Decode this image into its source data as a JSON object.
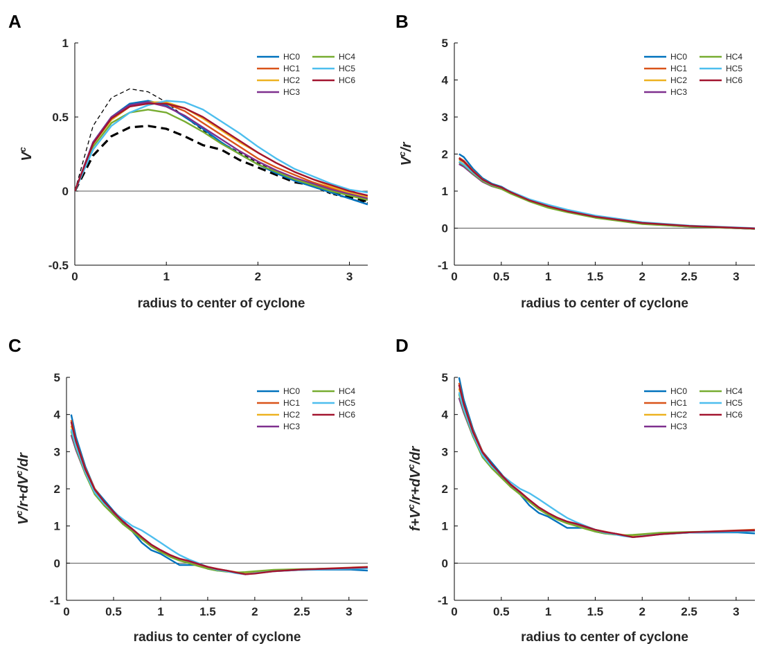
{
  "figure_title": "",
  "series_colors": {
    "HC0": "#0072BD",
    "HC1": "#D95319",
    "HC2": "#EDB120",
    "HC3": "#7E2F8E",
    "HC4": "#77AC30",
    "HC5": "#4DBEEE",
    "HC6": "#A2142F"
  },
  "chart_data": [
    {
      "panel": "A",
      "type": "line",
      "title": "",
      "xlabel": "radius to center of cyclone",
      "ylabel": "V^c",
      "ylabel_parts": [
        {
          "t": "V",
          "sup": false
        },
        {
          "t": "c",
          "sup": true
        }
      ],
      "xlim": [
        0,
        3.2
      ],
      "ylim": [
        -0.5,
        1
      ],
      "xticks": [
        0,
        1,
        2,
        3
      ],
      "xtick_labels": [
        "0",
        "1",
        "2",
        "3"
      ],
      "yticks": [
        -0.5,
        0,
        0.5,
        1
      ],
      "ytick_labels": [
        "-0.5",
        "0",
        "0.5",
        "1"
      ],
      "legend": [
        "HC0",
        "HC1",
        "HC2",
        "HC3",
        "HC4",
        "HC5",
        "HC6"
      ],
      "x": [
        0,
        0.2,
        0.4,
        0.6,
        0.8,
        1.0,
        1.2,
        1.4,
        1.6,
        1.8,
        2.0,
        2.2,
        2.4,
        2.6,
        2.8,
        3.0,
        3.2
      ],
      "series": [
        {
          "name": "HC0",
          "values": [
            0,
            0.33,
            0.5,
            0.59,
            0.61,
            0.58,
            0.5,
            0.42,
            0.33,
            0.25,
            0.18,
            0.12,
            0.07,
            0.03,
            -0.01,
            -0.05,
            -0.09
          ]
        },
        {
          "name": "HC1",
          "values": [
            0,
            0.32,
            0.49,
            0.58,
            0.6,
            0.59,
            0.54,
            0.46,
            0.38,
            0.3,
            0.22,
            0.16,
            0.11,
            0.06,
            0.02,
            -0.02,
            -0.05
          ]
        },
        {
          "name": "HC2",
          "values": [
            0,
            0.32,
            0.48,
            0.57,
            0.6,
            0.6,
            0.56,
            0.49,
            0.41,
            0.33,
            0.26,
            0.19,
            0.13,
            0.08,
            0.03,
            -0.01,
            -0.04
          ]
        },
        {
          "name": "HC3",
          "values": [
            0,
            0.33,
            0.5,
            0.58,
            0.6,
            0.57,
            0.51,
            0.43,
            0.35,
            0.27,
            0.2,
            0.14,
            0.09,
            0.05,
            0.01,
            -0.02,
            -0.05
          ]
        },
        {
          "name": "HC4",
          "values": [
            0,
            0.3,
            0.46,
            0.53,
            0.55,
            0.53,
            0.47,
            0.4,
            0.32,
            0.25,
            0.18,
            0.13,
            0.08,
            0.04,
            0.0,
            -0.03,
            -0.06
          ]
        },
        {
          "name": "HC5",
          "values": [
            0,
            0.28,
            0.44,
            0.53,
            0.58,
            0.61,
            0.6,
            0.55,
            0.47,
            0.39,
            0.3,
            0.22,
            0.15,
            0.1,
            0.05,
            0.01,
            -0.01
          ]
        },
        {
          "name": "HC6",
          "values": [
            0,
            0.32,
            0.49,
            0.57,
            0.59,
            0.59,
            0.56,
            0.5,
            0.42,
            0.34,
            0.26,
            0.19,
            0.13,
            0.08,
            0.04,
            0.0,
            -0.03
          ]
        }
      ],
      "dashed": [
        {
          "name": "dashed-thin",
          "values": [
            0,
            0.44,
            0.63,
            0.69,
            0.67,
            0.6,
            0.5,
            0.41,
            0.33,
            0.26,
            0.19,
            0.13,
            0.08,
            0.03,
            -0.02,
            -0.05,
            -0.08
          ]
        },
        {
          "name": "dashed-thick",
          "values": [
            0,
            0.24,
            0.37,
            0.43,
            0.44,
            0.42,
            0.37,
            0.31,
            0.28,
            0.21,
            0.16,
            0.11,
            0.06,
            0.04,
            -0.01,
            -0.04,
            -0.07
          ]
        }
      ]
    },
    {
      "panel": "B",
      "type": "line",
      "title": "",
      "xlabel": "radius to center of cyclone",
      "ylabel": "V^c/r",
      "ylabel_parts": [
        {
          "t": "V",
          "sup": false
        },
        {
          "t": "c",
          "sup": true
        },
        {
          "t": "/r",
          "sup": false
        }
      ],
      "xlim": [
        0,
        3.2
      ],
      "ylim": [
        -1,
        5
      ],
      "xticks": [
        0,
        0.5,
        1,
        1.5,
        2,
        2.5,
        3
      ],
      "xtick_labels": [
        "0",
        "0.5",
        "1",
        "1.5",
        "2",
        "2.5",
        "3"
      ],
      "yticks": [
        -1,
        0,
        1,
        2,
        3,
        4,
        5
      ],
      "ytick_labels": [
        "-1",
        "0",
        "1",
        "2",
        "3",
        "4",
        "5"
      ],
      "legend": [
        "HC0",
        "HC1",
        "HC2",
        "HC3",
        "HC4",
        "HC5",
        "HC6"
      ],
      "x": [
        0.05,
        0.1,
        0.2,
        0.3,
        0.4,
        0.5,
        0.6,
        0.8,
        1.0,
        1.2,
        1.5,
        2.0,
        2.5,
        3.0,
        3.2
      ],
      "series": [
        {
          "name": "HC0",
          "values": [
            2.0,
            1.92,
            1.6,
            1.35,
            1.2,
            1.12,
            0.98,
            0.75,
            0.58,
            0.45,
            0.3,
            0.13,
            0.05,
            0.0,
            -0.02
          ]
        },
        {
          "name": "HC1",
          "values": [
            1.9,
            1.82,
            1.55,
            1.32,
            1.18,
            1.1,
            0.97,
            0.74,
            0.58,
            0.45,
            0.3,
            0.13,
            0.05,
            0.01,
            -0.01
          ]
        },
        {
          "name": "HC2",
          "values": [
            1.85,
            1.78,
            1.52,
            1.3,
            1.17,
            1.09,
            0.96,
            0.74,
            0.58,
            0.45,
            0.3,
            0.13,
            0.05,
            0.01,
            -0.01
          ]
        },
        {
          "name": "HC3",
          "values": [
            1.73,
            1.66,
            1.45,
            1.25,
            1.13,
            1.06,
            0.94,
            0.73,
            0.57,
            0.44,
            0.29,
            0.12,
            0.04,
            0.0,
            -0.02
          ]
        },
        {
          "name": "HC4",
          "values": [
            1.78,
            1.7,
            1.47,
            1.27,
            1.14,
            1.06,
            0.93,
            0.72,
            0.55,
            0.43,
            0.28,
            0.11,
            0.04,
            0.0,
            -0.02
          ]
        },
        {
          "name": "HC5",
          "values": [
            1.8,
            1.72,
            1.5,
            1.3,
            1.17,
            1.1,
            0.99,
            0.78,
            0.63,
            0.5,
            0.34,
            0.16,
            0.07,
            0.02,
            0.0
          ]
        },
        {
          "name": "HC6",
          "values": [
            1.88,
            1.8,
            1.53,
            1.31,
            1.18,
            1.1,
            0.97,
            0.75,
            0.59,
            0.46,
            0.31,
            0.14,
            0.06,
            0.01,
            -0.01
          ]
        }
      ]
    },
    {
      "panel": "C",
      "type": "line",
      "title": "",
      "xlabel": "radius to center of cyclone",
      "ylabel": "V^c/r+dV^c/dr",
      "ylabel_parts": [
        {
          "t": "V",
          "sup": false
        },
        {
          "t": "c",
          "sup": true
        },
        {
          "t": "/r+dV",
          "sup": false
        },
        {
          "t": "c",
          "sup": true
        },
        {
          "t": "/dr",
          "sup": false
        }
      ],
      "xlim": [
        0,
        3.2
      ],
      "ylim": [
        -1,
        5
      ],
      "xticks": [
        0,
        0.5,
        1,
        1.5,
        2,
        2.5,
        3
      ],
      "xtick_labels": [
        "0",
        "0.5",
        "1",
        "1.5",
        "2",
        "2.5",
        "3"
      ],
      "yticks": [
        -1,
        0,
        1,
        2,
        3,
        4,
        5
      ],
      "ytick_labels": [
        "-1",
        "0",
        "1",
        "2",
        "3",
        "4",
        "5"
      ],
      "legend": [
        "HC0",
        "HC1",
        "HC2",
        "HC3",
        "HC4",
        "HC5",
        "HC6"
      ],
      "x": [
        0.05,
        0.1,
        0.2,
        0.3,
        0.4,
        0.5,
        0.6,
        0.7,
        0.8,
        0.9,
        1.0,
        1.1,
        1.2,
        1.3,
        1.4,
        1.5,
        1.6,
        1.7,
        1.8,
        1.9,
        2.0,
        2.2,
        2.5,
        3.0,
        3.2
      ],
      "series": [
        {
          "name": "HC0",
          "values": [
            4.0,
            3.4,
            2.6,
            2.0,
            1.7,
            1.4,
            1.15,
            0.85,
            0.55,
            0.35,
            0.25,
            0.1,
            -0.05,
            -0.05,
            -0.05,
            -0.15,
            -0.2,
            -0.22,
            -0.25,
            -0.27,
            -0.25,
            -0.2,
            -0.18,
            -0.17,
            -0.2
          ]
        },
        {
          "name": "HC1",
          "values": [
            3.85,
            3.3,
            2.55,
            2.0,
            1.65,
            1.35,
            1.05,
            0.9,
            0.65,
            0.45,
            0.3,
            0.2,
            0.1,
            0.05,
            -0.02,
            -0.1,
            -0.15,
            -0.2,
            -0.25,
            -0.28,
            -0.27,
            -0.2,
            -0.17,
            -0.12,
            -0.1
          ]
        },
        {
          "name": "HC2",
          "values": [
            3.7,
            3.2,
            2.5,
            1.95,
            1.6,
            1.32,
            1.08,
            0.88,
            0.68,
            0.48,
            0.32,
            0.2,
            0.1,
            0.04,
            -0.04,
            -0.12,
            -0.17,
            -0.2,
            -0.24,
            -0.27,
            -0.25,
            -0.2,
            -0.17,
            -0.14,
            -0.13
          ]
        },
        {
          "name": "HC3",
          "values": [
            3.45,
            3.05,
            2.4,
            1.9,
            1.6,
            1.35,
            1.1,
            0.9,
            0.7,
            0.5,
            0.35,
            0.22,
            0.12,
            0.05,
            -0.03,
            -0.1,
            -0.16,
            -0.2,
            -0.25,
            -0.3,
            -0.27,
            -0.22,
            -0.18,
            -0.14,
            -0.12
          ]
        },
        {
          "name": "HC4",
          "values": [
            3.55,
            3.1,
            2.4,
            1.85,
            1.55,
            1.3,
            1.05,
            0.85,
            0.65,
            0.45,
            0.3,
            0.17,
            0.07,
            0.0,
            -0.08,
            -0.15,
            -0.2,
            -0.23,
            -0.25,
            -0.24,
            -0.22,
            -0.18,
            -0.16,
            -0.14,
            -0.13
          ]
        },
        {
          "name": "HC5",
          "values": [
            3.6,
            3.15,
            2.45,
            1.9,
            1.6,
            1.38,
            1.18,
            1.0,
            0.88,
            0.72,
            0.55,
            0.38,
            0.22,
            0.1,
            0.0,
            -0.1,
            -0.18,
            -0.22,
            -0.27,
            -0.3,
            -0.27,
            -0.22,
            -0.18,
            -0.15,
            -0.14
          ]
        },
        {
          "name": "HC6",
          "values": [
            3.8,
            3.28,
            2.52,
            1.98,
            1.65,
            1.38,
            1.12,
            0.92,
            0.7,
            0.5,
            0.35,
            0.22,
            0.12,
            0.06,
            -0.02,
            -0.1,
            -0.16,
            -0.2,
            -0.25,
            -0.3,
            -0.28,
            -0.22,
            -0.17,
            -0.13,
            -0.11
          ]
        }
      ]
    },
    {
      "panel": "D",
      "type": "line",
      "title": "",
      "xlabel": "radius to center of cyclone",
      "ylabel": "f+V^c/r+dV^c/dr",
      "ylabel_parts": [
        {
          "t": "f+V",
          "sup": false
        },
        {
          "t": "c",
          "sup": true
        },
        {
          "t": "/r+dV",
          "sup": false
        },
        {
          "t": "c",
          "sup": true
        },
        {
          "t": "/dr",
          "sup": false
        }
      ],
      "xlim": [
        0,
        3.2
      ],
      "ylim": [
        -1,
        5
      ],
      "xticks": [
        0,
        0.5,
        1,
        1.5,
        2,
        2.5,
        3
      ],
      "xtick_labels": [
        "0",
        "0.5",
        "1",
        "1.5",
        "2",
        "2.5",
        "3"
      ],
      "yticks": [
        -1,
        0,
        1,
        2,
        3,
        4,
        5
      ],
      "ytick_labels": [
        "-1",
        "0",
        "1",
        "2",
        "3",
        "4",
        "5"
      ],
      "legend": [
        "HC0",
        "HC1",
        "HC2",
        "HC3",
        "HC4",
        "HC5",
        "HC6"
      ],
      "x": [
        0.05,
        0.1,
        0.2,
        0.3,
        0.4,
        0.5,
        0.6,
        0.7,
        0.8,
        0.9,
        1.0,
        1.1,
        1.2,
        1.3,
        1.4,
        1.5,
        1.6,
        1.7,
        1.8,
        1.9,
        2.0,
        2.2,
        2.5,
        3.0,
        3.2
      ],
      "series": [
        {
          "name": "HC0",
          "values": [
            5.0,
            4.4,
            3.6,
            3.0,
            2.7,
            2.4,
            2.1,
            1.85,
            1.55,
            1.35,
            1.25,
            1.1,
            0.95,
            0.95,
            0.95,
            0.85,
            0.8,
            0.78,
            0.75,
            0.73,
            0.75,
            0.8,
            0.82,
            0.83,
            0.8
          ]
        },
        {
          "name": "HC1",
          "values": [
            4.85,
            4.3,
            3.55,
            3.0,
            2.65,
            2.35,
            2.05,
            1.9,
            1.65,
            1.45,
            1.3,
            1.2,
            1.1,
            1.05,
            0.98,
            0.9,
            0.85,
            0.8,
            0.75,
            0.72,
            0.73,
            0.8,
            0.83,
            0.88,
            0.9
          ]
        },
        {
          "name": "HC2",
          "values": [
            4.7,
            4.2,
            3.5,
            2.95,
            2.6,
            2.32,
            2.08,
            1.88,
            1.68,
            1.48,
            1.32,
            1.2,
            1.1,
            1.04,
            0.96,
            0.88,
            0.83,
            0.8,
            0.76,
            0.73,
            0.75,
            0.8,
            0.83,
            0.86,
            0.87
          ]
        },
        {
          "name": "HC3",
          "values": [
            4.45,
            4.05,
            3.4,
            2.9,
            2.6,
            2.35,
            2.1,
            1.9,
            1.7,
            1.5,
            1.35,
            1.22,
            1.12,
            1.05,
            0.97,
            0.9,
            0.84,
            0.8,
            0.75,
            0.7,
            0.73,
            0.78,
            0.82,
            0.86,
            0.88
          ]
        },
        {
          "name": "HC4",
          "values": [
            4.55,
            4.1,
            3.4,
            2.85,
            2.55,
            2.3,
            2.05,
            1.85,
            1.65,
            1.45,
            1.3,
            1.17,
            1.07,
            1.0,
            0.92,
            0.85,
            0.8,
            0.77,
            0.75,
            0.76,
            0.78,
            0.82,
            0.84,
            0.86,
            0.87
          ]
        },
        {
          "name": "HC5",
          "values": [
            4.6,
            4.15,
            3.45,
            2.9,
            2.6,
            2.38,
            2.18,
            2.0,
            1.88,
            1.72,
            1.55,
            1.38,
            1.22,
            1.1,
            1.0,
            0.9,
            0.82,
            0.78,
            0.73,
            0.7,
            0.73,
            0.78,
            0.82,
            0.85,
            0.86
          ]
        },
        {
          "name": "HC6",
          "values": [
            4.8,
            4.28,
            3.52,
            2.98,
            2.65,
            2.38,
            2.12,
            1.92,
            1.7,
            1.5,
            1.35,
            1.22,
            1.12,
            1.06,
            0.98,
            0.9,
            0.84,
            0.8,
            0.75,
            0.7,
            0.72,
            0.78,
            0.83,
            0.87,
            0.88
          ]
        }
      ]
    }
  ]
}
